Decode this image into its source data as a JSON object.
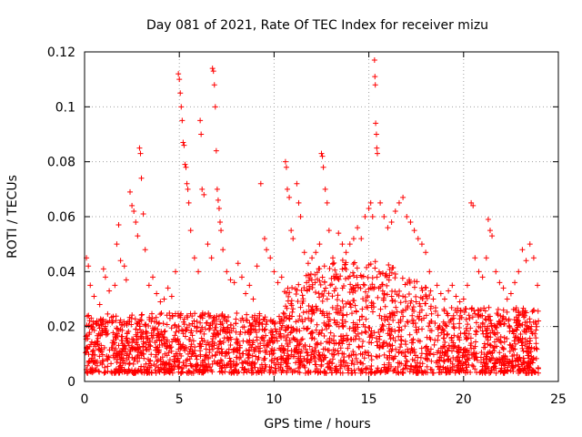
{
  "chart_data": {
    "type": "scatter",
    "title": "Day 081 of 2021, Rate Of TEC Index for receiver mizu",
    "xlabel": "GPS time / hours",
    "ylabel": "ROTI / TECUs",
    "xlim": [
      0,
      25
    ],
    "ylim": [
      0,
      0.12
    ],
    "x_ticks": [
      "0",
      "5",
      "10",
      "15",
      "20",
      "25"
    ],
    "y_ticks": [
      "0",
      "0.02",
      "0.04",
      "0.06",
      "0.08",
      "0.1",
      "0.12"
    ],
    "grid": true,
    "marker": "+",
    "color": "#ff0000",
    "series": [
      {
        "points": [
          [
            0.1,
            0.045
          ],
          [
            0.2,
            0.042
          ],
          [
            0.3,
            0.035
          ],
          [
            0.5,
            0.031
          ],
          [
            0.8,
            0.028
          ],
          [
            1.0,
            0.041
          ],
          [
            1.1,
            0.038
          ],
          [
            1.3,
            0.033
          ],
          [
            1.6,
            0.035
          ],
          [
            1.7,
            0.05
          ],
          [
            1.8,
            0.057
          ],
          [
            1.9,
            0.044
          ],
          [
            2.1,
            0.042
          ],
          [
            2.2,
            0.037
          ],
          [
            2.4,
            0.069
          ],
          [
            2.5,
            0.064
          ],
          [
            2.6,
            0.062
          ],
          [
            2.7,
            0.058
          ],
          [
            2.8,
            0.053
          ],
          [
            2.9,
            0.085
          ],
          [
            2.95,
            0.083
          ],
          [
            3.0,
            0.074
          ],
          [
            3.1,
            0.061
          ],
          [
            3.2,
            0.048
          ],
          [
            3.4,
            0.035
          ],
          [
            3.6,
            0.038
          ],
          [
            3.8,
            0.032
          ],
          [
            4.0,
            0.029
          ],
          [
            4.2,
            0.03
          ],
          [
            4.4,
            0.034
          ],
          [
            4.6,
            0.031
          ],
          [
            4.8,
            0.04
          ],
          [
            4.95,
            0.112
          ],
          [
            5.0,
            0.11
          ],
          [
            5.05,
            0.105
          ],
          [
            5.1,
            0.1
          ],
          [
            5.15,
            0.095
          ],
          [
            5.2,
            0.087
          ],
          [
            5.25,
            0.086
          ],
          [
            5.3,
            0.079
          ],
          [
            5.35,
            0.078
          ],
          [
            5.4,
            0.072
          ],
          [
            5.45,
            0.07
          ],
          [
            5.5,
            0.065
          ],
          [
            5.6,
            0.055
          ],
          [
            5.8,
            0.045
          ],
          [
            6.0,
            0.04
          ],
          [
            6.1,
            0.095
          ],
          [
            6.15,
            0.09
          ],
          [
            6.2,
            0.07
          ],
          [
            6.3,
            0.068
          ],
          [
            6.5,
            0.05
          ],
          [
            6.7,
            0.045
          ],
          [
            6.75,
            0.114
          ],
          [
            6.8,
            0.113
          ],
          [
            6.85,
            0.108
          ],
          [
            6.9,
            0.1
          ],
          [
            6.95,
            0.084
          ],
          [
            7.0,
            0.07
          ],
          [
            7.05,
            0.066
          ],
          [
            7.1,
            0.063
          ],
          [
            7.15,
            0.058
          ],
          [
            7.2,
            0.055
          ],
          [
            7.3,
            0.048
          ],
          [
            7.5,
            0.04
          ],
          [
            7.7,
            0.037
          ],
          [
            7.9,
            0.036
          ],
          [
            8.1,
            0.043
          ],
          [
            8.3,
            0.038
          ],
          [
            8.5,
            0.032
          ],
          [
            8.7,
            0.035
          ],
          [
            8.9,
            0.03
          ],
          [
            9.1,
            0.042
          ],
          [
            9.3,
            0.072
          ],
          [
            9.5,
            0.052
          ],
          [
            9.6,
            0.048
          ],
          [
            9.8,
            0.045
          ],
          [
            10.0,
            0.04
          ],
          [
            10.2,
            0.036
          ],
          [
            10.4,
            0.038
          ],
          [
            10.6,
            0.08
          ],
          [
            10.65,
            0.078
          ],
          [
            10.7,
            0.07
          ],
          [
            10.8,
            0.067
          ],
          [
            10.9,
            0.055
          ],
          [
            11.0,
            0.052
          ],
          [
            11.2,
            0.072
          ],
          [
            11.3,
            0.065
          ],
          [
            11.4,
            0.06
          ],
          [
            11.6,
            0.047
          ],
          [
            11.8,
            0.043
          ],
          [
            12.0,
            0.045
          ],
          [
            12.2,
            0.047
          ],
          [
            12.4,
            0.05
          ],
          [
            12.5,
            0.083
          ],
          [
            12.55,
            0.082
          ],
          [
            12.6,
            0.078
          ],
          [
            12.7,
            0.07
          ],
          [
            12.8,
            0.065
          ],
          [
            12.9,
            0.055
          ],
          [
            13.1,
            0.045
          ],
          [
            13.4,
            0.054
          ],
          [
            13.6,
            0.05
          ],
          [
            13.8,
            0.047
          ],
          [
            14.0,
            0.05
          ],
          [
            14.2,
            0.052
          ],
          [
            14.4,
            0.056
          ],
          [
            14.6,
            0.052
          ],
          [
            14.8,
            0.06
          ],
          [
            15.0,
            0.063
          ],
          [
            15.1,
            0.065
          ],
          [
            15.2,
            0.06
          ],
          [
            15.3,
            0.117
          ],
          [
            15.32,
            0.111
          ],
          [
            15.34,
            0.108
          ],
          [
            15.36,
            0.094
          ],
          [
            15.4,
            0.09
          ],
          [
            15.42,
            0.085
          ],
          [
            15.45,
            0.083
          ],
          [
            15.6,
            0.065
          ],
          [
            15.8,
            0.06
          ],
          [
            16.0,
            0.056
          ],
          [
            16.2,
            0.058
          ],
          [
            16.4,
            0.062
          ],
          [
            16.6,
            0.065
          ],
          [
            16.8,
            0.067
          ],
          [
            17.0,
            0.06
          ],
          [
            17.2,
            0.058
          ],
          [
            17.4,
            0.055
          ],
          [
            17.6,
            0.052
          ],
          [
            17.8,
            0.05
          ],
          [
            18.0,
            0.047
          ],
          [
            18.2,
            0.04
          ],
          [
            18.4,
            0.03
          ],
          [
            18.6,
            0.035
          ],
          [
            18.8,
            0.032
          ],
          [
            19.0,
            0.03
          ],
          [
            19.2,
            0.033
          ],
          [
            19.4,
            0.035
          ],
          [
            19.6,
            0.031
          ],
          [
            19.8,
            0.029
          ],
          [
            20.0,
            0.03
          ],
          [
            20.2,
            0.035
          ],
          [
            20.4,
            0.065
          ],
          [
            20.5,
            0.064
          ],
          [
            20.6,
            0.045
          ],
          [
            20.8,
            0.04
          ],
          [
            21.0,
            0.038
          ],
          [
            21.2,
            0.045
          ],
          [
            21.3,
            0.059
          ],
          [
            21.4,
            0.055
          ],
          [
            21.5,
            0.053
          ],
          [
            21.7,
            0.04
          ],
          [
            21.9,
            0.036
          ],
          [
            22.1,
            0.034
          ],
          [
            22.3,
            0.03
          ],
          [
            22.5,
            0.032
          ],
          [
            22.7,
            0.036
          ],
          [
            22.9,
            0.04
          ],
          [
            23.1,
            0.048
          ],
          [
            23.3,
            0.044
          ],
          [
            23.5,
            0.05
          ],
          [
            23.7,
            0.045
          ],
          [
            23.9,
            0.035
          ]
        ]
      }
    ]
  }
}
